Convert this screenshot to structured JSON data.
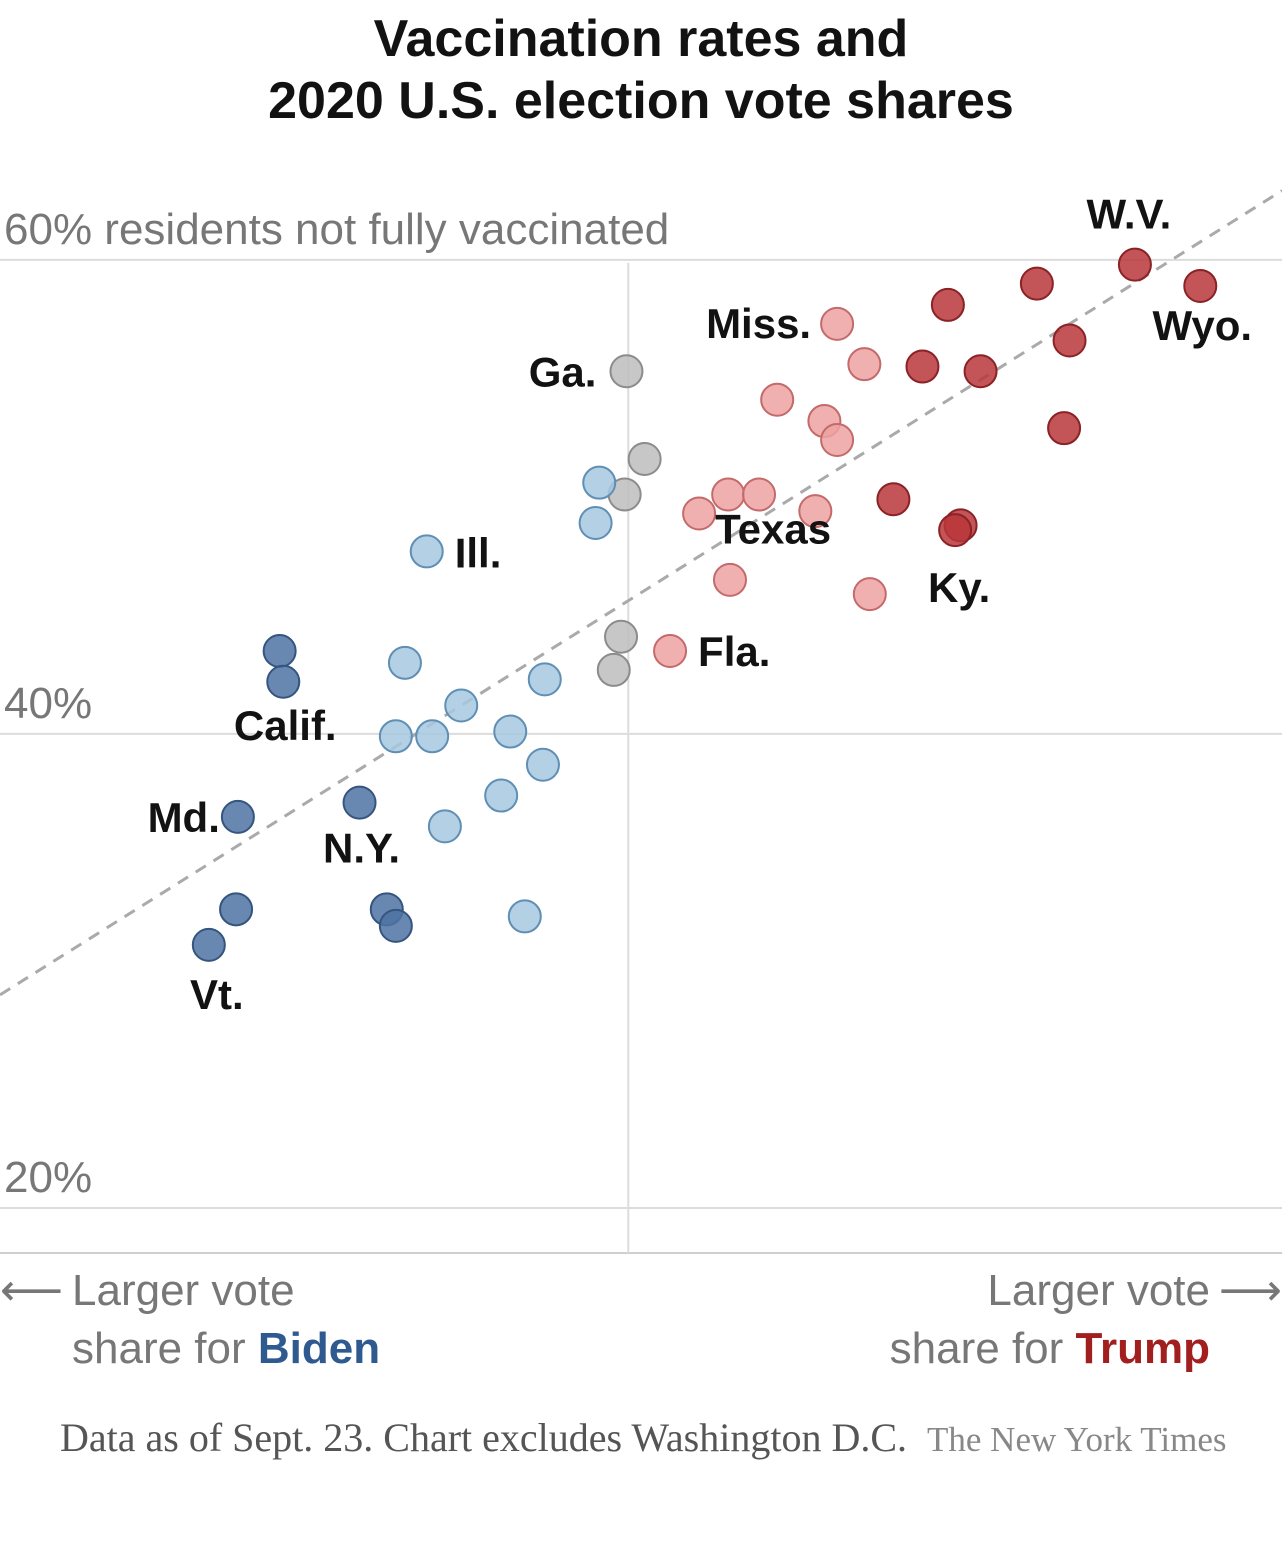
{
  "title_line1": "Vaccination rates and",
  "title_line2": "2020 U.S. election vote shares",
  "chart_data": {
    "type": "scatter",
    "title": "Vaccination rates and 2020 U.S. election vote shares",
    "ylabel": "residents not fully vaccinated",
    "xlabel_left": "Larger vote share for Biden",
    "xlabel_right": "Larger vote share for Trump",
    "y_ticks": [
      {
        "value": 60,
        "label": "60% residents not fully vaccinated"
      },
      {
        "value": 40,
        "label": "40%"
      },
      {
        "value": 20,
        "label": "20%"
      }
    ],
    "ylim": [
      18.1,
      62.4
    ],
    "x_center": 0,
    "xlim": [
      -34.6,
      36.0
    ],
    "x_unit": "vote margin (Trump minus Biden), percentage points",
    "grid": true,
    "trendline": "dashed",
    "colors": {
      "strong_biden": "#4d73a3",
      "lean_biden": "#a6c8e0",
      "tossup": "#bdbdbd",
      "lean_trump": "#eea2a2",
      "strong_trump": "#b8363a"
    },
    "points": [
      {
        "label": "W.V.",
        "x": 27.9,
        "y": 59.8,
        "group": "strong_trump"
      },
      {
        "label": "Wyo.",
        "x": 31.5,
        "y": 58.9,
        "group": "strong_trump"
      },
      {
        "label": "",
        "x": 22.5,
        "y": 59.0,
        "group": "strong_trump"
      },
      {
        "label": "",
        "x": 17.6,
        "y": 58.1,
        "group": "strong_trump"
      },
      {
        "label": "",
        "x": 24.3,
        "y": 56.6,
        "group": "strong_trump"
      },
      {
        "label": "",
        "x": 16.2,
        "y": 55.5,
        "group": "strong_trump"
      },
      {
        "label": "",
        "x": 19.4,
        "y": 55.3,
        "group": "strong_trump"
      },
      {
        "label": "",
        "x": 24.0,
        "y": 52.9,
        "group": "strong_trump"
      },
      {
        "label": "",
        "x": 14.6,
        "y": 49.9,
        "group": "strong_trump"
      },
      {
        "label": "",
        "x": 18.3,
        "y": 48.8,
        "group": "strong_trump"
      },
      {
        "label": "Ky.",
        "x": 18.0,
        "y": 48.6,
        "group": "strong_trump"
      },
      {
        "label": "Miss.",
        "x": 11.5,
        "y": 57.3,
        "group": "lean_trump"
      },
      {
        "label": "",
        "x": 13.0,
        "y": 55.6,
        "group": "lean_trump"
      },
      {
        "label": "",
        "x": 8.2,
        "y": 54.1,
        "group": "lean_trump"
      },
      {
        "label": "",
        "x": 10.8,
        "y": 53.2,
        "group": "lean_trump"
      },
      {
        "label": "",
        "x": 11.5,
        "y": 52.4,
        "group": "lean_trump"
      },
      {
        "label": "",
        "x": 5.5,
        "y": 50.1,
        "group": "lean_trump"
      },
      {
        "label": "",
        "x": 7.2,
        "y": 50.1,
        "group": "lean_trump"
      },
      {
        "label": "Texas",
        "x": 3.9,
        "y": 49.3,
        "group": "lean_trump"
      },
      {
        "label": "",
        "x": 10.3,
        "y": 49.4,
        "group": "lean_trump"
      },
      {
        "label": "",
        "x": 5.6,
        "y": 46.5,
        "group": "lean_trump"
      },
      {
        "label": "",
        "x": 13.3,
        "y": 45.9,
        "group": "lean_trump"
      },
      {
        "label": "Fla.",
        "x": 2.3,
        "y": 43.5,
        "group": "lean_trump"
      },
      {
        "label": "Ga.",
        "x": -0.1,
        "y": 55.3,
        "group": "tossup"
      },
      {
        "label": "",
        "x": 0.9,
        "y": 51.6,
        "group": "tossup"
      },
      {
        "label": "",
        "x": -0.2,
        "y": 50.1,
        "group": "tossup"
      },
      {
        "label": "",
        "x": -0.4,
        "y": 44.1,
        "group": "tossup"
      },
      {
        "label": "",
        "x": -0.8,
        "y": 42.7,
        "group": "tossup"
      },
      {
        "label": "",
        "x": -1.6,
        "y": 50.6,
        "group": "lean_biden"
      },
      {
        "label": "",
        "x": -1.8,
        "y": 48.9,
        "group": "lean_biden"
      },
      {
        "label": "Ill.",
        "x": -11.1,
        "y": 47.7,
        "group": "lean_biden"
      },
      {
        "label": "",
        "x": -12.3,
        "y": 43.0,
        "group": "lean_biden"
      },
      {
        "label": "",
        "x": -4.6,
        "y": 42.3,
        "group": "lean_biden"
      },
      {
        "label": "",
        "x": -9.2,
        "y": 41.2,
        "group": "lean_biden"
      },
      {
        "label": "",
        "x": -6.5,
        "y": 40.1,
        "group": "lean_biden"
      },
      {
        "label": "",
        "x": -12.8,
        "y": 39.9,
        "group": "lean_biden"
      },
      {
        "label": "",
        "x": -10.8,
        "y": 39.9,
        "group": "lean_biden"
      },
      {
        "label": "",
        "x": -4.7,
        "y": 38.7,
        "group": "lean_biden"
      },
      {
        "label": "",
        "x": -7.0,
        "y": 37.4,
        "group": "lean_biden"
      },
      {
        "label": "",
        "x": -10.1,
        "y": 36.1,
        "group": "lean_biden"
      },
      {
        "label": "",
        "x": -5.7,
        "y": 32.3,
        "group": "lean_biden"
      },
      {
        "label": "",
        "x": -19.2,
        "y": 43.5,
        "group": "strong_biden"
      },
      {
        "label": "Calif.",
        "x": -19.0,
        "y": 42.2,
        "group": "strong_biden"
      },
      {
        "label": "Md.",
        "x": -21.5,
        "y": 36.5,
        "group": "strong_biden"
      },
      {
        "label": "N.Y.",
        "x": -14.8,
        "y": 37.1,
        "group": "strong_biden"
      },
      {
        "label": "",
        "x": -21.6,
        "y": 32.6,
        "group": "strong_biden"
      },
      {
        "label": "",
        "x": -13.3,
        "y": 32.6,
        "group": "strong_biden"
      },
      {
        "label": "",
        "x": -12.8,
        "y": 31.9,
        "group": "strong_biden"
      },
      {
        "label": "Vt.",
        "x": -23.1,
        "y": 31.1,
        "group": "strong_biden"
      }
    ]
  },
  "direction_left_line1": "Larger vote",
  "direction_left_line2_prefix": "share for ",
  "direction_left_emph": "Biden",
  "direction_right_line1": "Larger vote",
  "direction_right_line2_prefix": "share for ",
  "direction_right_emph": "Trump",
  "arrow_left": "⟵",
  "arrow_right": "⟶",
  "note": "Data as of Sept. 23. Chart excludes Washington D.C.",
  "source": "The New York Times"
}
